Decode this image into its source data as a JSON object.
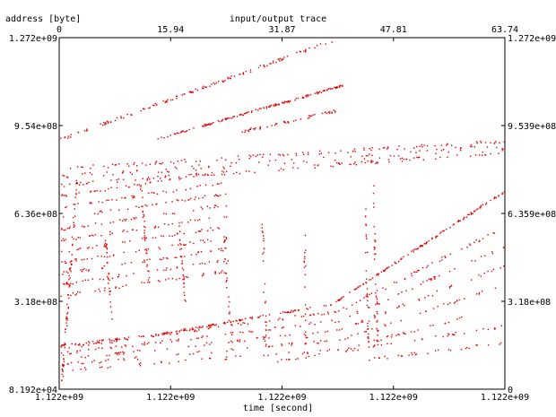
{
  "chart_data": {
    "type": "scatter",
    "title": "input/output trace",
    "xlabel": "time [second]",
    "ylabel": "address [byte]",
    "top_axis": {
      "range": [
        0,
        63.74
      ],
      "tick_labels": [
        "0",
        "15.94",
        "31.87",
        "47.81",
        "63.74"
      ]
    },
    "bottom_axis": {
      "tick_labels": [
        "1.122e+09",
        "1.122e+09",
        "1.122e+09",
        "1.122e+09",
        "1.122e+09"
      ]
    },
    "left_axis": {
      "range": [
        81920,
        1272000000
      ],
      "tick_labels": [
        "8.192e+04",
        "3.18e+08",
        "6.36e+08",
        "9.54e+08",
        "1.272e+09"
      ]
    },
    "right_axis": {
      "range": [
        0,
        1272000000
      ],
      "tick_labels": [
        "0",
        "3.18e+08",
        "6.359e+08",
        "9.539e+08",
        "1.272e+09"
      ]
    },
    "grid": false,
    "point_color": "#e00000",
    "series": [
      {
        "segments": [
          [
            [
              0,
              160000000
            ],
            [
              14,
              200000000
            ],
            [
              39,
              310000000
            ],
            [
              63.74,
              720000000
            ]
          ]
        ],
        "density": 260,
        "jitter": 2
      },
      {
        "segments": [
          [
            [
              0,
              150000000
            ],
            [
              40,
              285000000
            ],
            [
              63.74,
              590000000
            ]
          ]
        ],
        "density": 120,
        "jitter": 3
      },
      {
        "segments": [
          [
            [
              0,
              130000000
            ],
            [
              40,
              250000000
            ],
            [
              63.74,
              520000000
            ]
          ]
        ],
        "density": 100,
        "jitter": 3
      },
      {
        "segments": [
          [
            [
              0,
              110000000
            ],
            [
              40,
              215000000
            ],
            [
              63.74,
              450000000
            ]
          ]
        ],
        "density": 90,
        "jitter": 3
      },
      {
        "segments": [
          [
            [
              0,
              90000000
            ],
            [
              40,
              180000000
            ],
            [
              63.74,
              380000000
            ]
          ]
        ],
        "density": 80,
        "jitter": 3
      },
      {
        "segments": [
          [
            [
              0,
              70000000
            ],
            [
              40,
              145000000
            ],
            [
              63.74,
              300000000
            ]
          ]
        ],
        "density": 70,
        "jitter": 3
      },
      {
        "segments": [
          [
            [
              30,
              100000000
            ],
            [
              63.74,
              230000000
            ]
          ]
        ],
        "density": 45,
        "jitter": 3
      },
      {
        "segments": [
          [
            [
              44,
              110000000
            ],
            [
              63.74,
              170000000
            ]
          ]
        ],
        "density": 30,
        "jitter": 3
      },
      {
        "segments": [
          [
            [
              14,
              908000000
            ],
            [
              40.6,
              1102000000
            ]
          ]
        ],
        "density": 150,
        "jitter": 2
      },
      {
        "segments": [
          [
            [
              0,
              905000000
            ],
            [
              40,
              1272000000
            ]
          ]
        ],
        "density": 130,
        "jitter": 3
      },
      {
        "segments": [
          [
            [
              26,
              934000000
            ],
            [
              40,
              1012000000
            ]
          ]
        ],
        "density": 50,
        "jitter": 3
      },
      {
        "segments": [
          [
            [
              0,
              800000000
            ],
            [
              63.74,
              900000000
            ]
          ]
        ],
        "density": 110,
        "jitter": 4
      },
      {
        "segments": [
          [
            [
              0,
              740000000
            ],
            [
              63.74,
              860000000
            ]
          ]
        ],
        "density": 110,
        "jitter": 4
      },
      {
        "segments": [
          [
            [
              0,
              770000000
            ],
            [
              63.74,
              880000000
            ]
          ]
        ],
        "density": 80,
        "jitter": 6
      },
      {
        "segments": [
          [
            [
              0,
              700000000
            ],
            [
              24,
              790000000
            ]
          ]
        ],
        "density": 40,
        "jitter": 3
      },
      {
        "segments": [
          [
            [
              0,
              660000000
            ],
            [
              24,
              750000000
            ]
          ]
        ],
        "density": 40,
        "jitter": 3
      },
      {
        "segments": [
          [
            [
              0,
              620000000
            ],
            [
              24,
              710000000
            ]
          ]
        ],
        "density": 40,
        "jitter": 3
      },
      {
        "segments": [
          [
            [
              0,
              580000000
            ],
            [
              24,
              670000000
            ]
          ]
        ],
        "density": 40,
        "jitter": 3
      },
      {
        "segments": [
          [
            [
              0,
              540000000
            ],
            [
              24,
              630000000
            ]
          ]
        ],
        "density": 40,
        "jitter": 3
      },
      {
        "segments": [
          [
            [
              0,
              500000000
            ],
            [
              24,
              590000000
            ]
          ]
        ],
        "density": 40,
        "jitter": 3
      },
      {
        "segments": [
          [
            [
              0,
              460000000
            ],
            [
              24,
              550000000
            ]
          ]
        ],
        "density": 40,
        "jitter": 3
      },
      {
        "segments": [
          [
            [
              0,
              420000000
            ],
            [
              24,
              510000000
            ]
          ]
        ],
        "density": 40,
        "jitter": 3
      },
      {
        "segments": [
          [
            [
              0,
              380000000
            ],
            [
              24,
              470000000
            ]
          ]
        ],
        "density": 40,
        "jitter": 3
      },
      {
        "segments": [
          [
            [
              0,
              340000000
            ],
            [
              24,
              430000000
            ]
          ]
        ],
        "density": 40,
        "jitter": 3
      },
      {
        "segments": [
          [
            [
              0.3,
              30000000
            ],
            [
              2.5,
              760000000
            ]
          ]
        ],
        "density": 70,
        "jitter": 2
      },
      {
        "segments": [
          [
            [
              11.5,
              760000000
            ],
            [
              12.8,
              380000000
            ]
          ]
        ],
        "density": 30,
        "jitter": 2
      },
      {
        "segments": [
          [
            [
              17,
              600000000
            ],
            [
              18,
              300000000
            ]
          ]
        ],
        "density": 28,
        "jitter": 2
      },
      {
        "segments": [
          [
            [
              23.5,
              560000000
            ],
            [
              24.3,
              250000000
            ]
          ]
        ],
        "density": 22,
        "jitter": 2
      },
      {
        "segments": [
          [
            [
              29,
              600000000
            ],
            [
              29.5,
              150000000
            ]
          ]
        ],
        "density": 22,
        "jitter": 2
      },
      {
        "segments": [
          [
            [
              35,
              560000000
            ],
            [
              35.3,
              170000000
            ]
          ]
        ],
        "density": 18,
        "jitter": 2
      },
      {
        "segments": [
          [
            [
              43.6,
              750000000
            ],
            [
              44.2,
              150000000
            ]
          ]
        ],
        "density": 30,
        "jitter": 2
      },
      {
        "segments": [
          [
            [
              44.8,
              750000000
            ],
            [
              45.5,
              160000000
            ]
          ]
        ],
        "density": 30,
        "jitter": 2
      },
      {
        "segments": [
          [
            [
              6.5,
              560000000
            ],
            [
              7.5,
              250000000
            ]
          ]
        ],
        "density": 24,
        "jitter": 2
      }
    ]
  }
}
